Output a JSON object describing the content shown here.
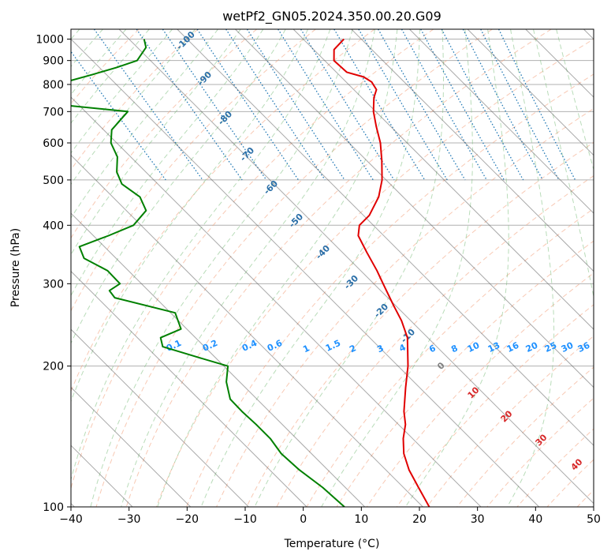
{
  "chart_data": {
    "type": "line",
    "title": "wetPf2_GN05.2024.350.00.20.G09",
    "xlabel": "Temperature (°C)",
    "ylabel": "Pressure (hPa)",
    "xlim": [
      -40,
      50
    ],
    "ylim": [
      1050,
      100
    ],
    "y_scale": "log",
    "x_ticks": [
      -40,
      -30,
      -20,
      -10,
      0,
      10,
      20,
      30,
      40,
      50
    ],
    "y_ticks": [
      100,
      200,
      300,
      400,
      500,
      600,
      700,
      800,
      900,
      1000
    ],
    "skew_factor": 35,
    "grid": true,
    "series": [
      {
        "color": "#e00000",
        "pressure": [
          1000,
          950,
          900,
          850,
          830,
          810,
          780,
          750,
          700,
          650,
          600,
          550,
          500,
          460,
          420,
          400,
          380,
          350,
          320,
          300,
          270,
          250,
          230,
          200,
          180,
          160,
          150,
          140,
          130,
          120,
          110,
          100
        ],
        "temperature": [
          7.0,
          3.5,
          1.6,
          1.8,
          3.9,
          4.4,
          3.9,
          2.1,
          -0.4,
          -2.5,
          -4.6,
          -7.4,
          -10.7,
          -14.2,
          -19.0,
          -22.4,
          -24.4,
          -25.8,
          -27.2,
          -28.4,
          -30.3,
          -31.6,
          -33.5,
          -38.3,
          -42.4,
          -46.8,
          -48.8,
          -51.6,
          -54.1,
          -56.0,
          -57.4,
          -58.9
        ]
      },
      {
        "color": "#008000",
        "pressure": [
          1000,
          960,
          900,
          870,
          840,
          800,
          780,
          760,
          750,
          740,
          720,
          700,
          680,
          640,
          600,
          560,
          520,
          490,
          460,
          430,
          400,
          380,
          360,
          340,
          320,
          300,
          290,
          280,
          260,
          240,
          230,
          220,
          210,
          200,
          185,
          170,
          160,
          150,
          140,
          130,
          120,
          110,
          100
        ],
        "temperature": [
          -27.4,
          -28.5,
          -32.3,
          -37.0,
          -42.4,
          -50.3,
          -60.0,
          -65.8,
          -68.5,
          -65.0,
          -51.4,
          -42.7,
          -44.6,
          -48.6,
          -51.0,
          -52.3,
          -55.0,
          -56.2,
          -55.3,
          -56.6,
          -61.3,
          -67.4,
          -74.3,
          -75.5,
          -73.6,
          -73.7,
          -76.7,
          -77.0,
          -69.2,
          -71.0,
          -76.0,
          -77.2,
          -73.4,
          -69.3,
          -72.3,
          -74.6,
          -74.7,
          -74.5,
          -74.5,
          -75.2,
          -74.9,
          -73.9,
          -73.5
        ]
      }
    ],
    "mixing_ratio_lines": [
      "0.1",
      "0.2",
      "0.4",
      "0.6",
      "1",
      "1.5",
      "2",
      "3",
      "4",
      "6",
      "8",
      "10",
      "13",
      "16",
      "20",
      "25",
      "30",
      "36"
    ],
    "dry_adiabat_labels": [
      "-100",
      "-90",
      "-80",
      "-70",
      "-60",
      "-50",
      "-40",
      "-30",
      "-20",
      "-10"
    ],
    "moist_adiabat_labels": [
      "0",
      "10",
      "20",
      "30",
      "40"
    ],
    "colors": {
      "temperature": "#e00000",
      "dewpoint": "#008000",
      "dry_adiabat": "#f4a582",
      "moist_adiabat": "#7fbf7f",
      "mixing_ratio": "#1f77b4",
      "isotherm": "#555555",
      "dry_label": "#2b6fa8",
      "mixing_label": "#1e90ff",
      "moist_label_zero": "#808080",
      "moist_label": "#d62728"
    }
  }
}
